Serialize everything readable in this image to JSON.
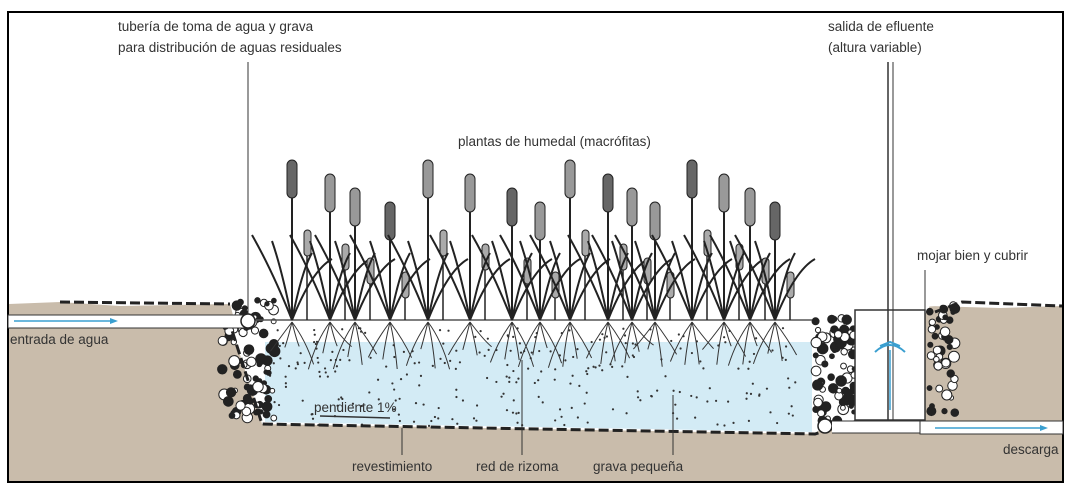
{
  "labels": {
    "inlet_pipe": [
      "tubería de toma de agua y grava",
      "para distribución de aguas residuales"
    ],
    "effluent_outlet": [
      "salida de efluente",
      "(altura variable)"
    ],
    "plants": "plantas de humedal (macrófitas)",
    "wet_cover": "mojar bien y cubrir",
    "water_inlet": "entrada de agua",
    "slope": "pendiente 1%",
    "liner": "revestimiento",
    "rhizome": "red de rizoma",
    "gravel": "grava pequeña",
    "discharge": "descarga"
  }
}
